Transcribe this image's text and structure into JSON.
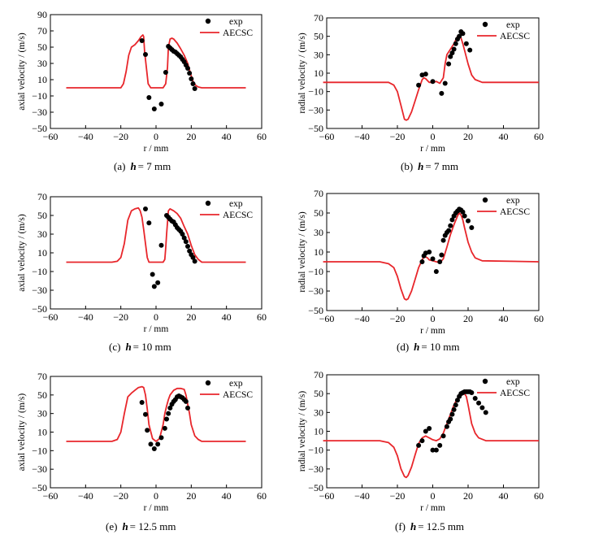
{
  "chart_data": [
    {
      "type": "line",
      "caption": {
        "letter": "(a)",
        "var": "h",
        "value": "= 7 mm"
      },
      "xlabel": "r / mm",
      "ylabel": "axial velocity / (m/s)",
      "xlim": [
        -60,
        60
      ],
      "ylim": [
        -50,
        90
      ],
      "xticks": [
        -60,
        -40,
        -20,
        0,
        20,
        40,
        60
      ],
      "yticks": [
        -50,
        -30,
        -10,
        10,
        30,
        50,
        70,
        90
      ],
      "legend": [
        "exp",
        "AECSC"
      ],
      "legend_position": "top-right",
      "series": [
        {
          "name": "AECSC",
          "kind": "line",
          "color": "#e8262b",
          "x": [
            -51,
            -20,
            -18.5,
            -17,
            -15.5,
            -14,
            -12,
            -10,
            -8.5,
            -7.5,
            -7,
            -6.5,
            -5.5,
            -4.5,
            -3,
            4,
            5.5,
            6.5,
            7,
            8,
            9,
            10,
            12,
            14,
            16,
            18,
            19.5,
            21,
            22.5,
            24,
            26,
            51
          ],
          "y": [
            0,
            0,
            5,
            20,
            40,
            50,
            53,
            58,
            63,
            65,
            63,
            45,
            25,
            5,
            0,
            0,
            5,
            25,
            50,
            60,
            61,
            60,
            55,
            48,
            40,
            30,
            18,
            8,
            3,
            1,
            0,
            0
          ]
        },
        {
          "name": "exp",
          "kind": "scatter",
          "color": "#000000",
          "x": [
            -8,
            -6,
            -4,
            -1,
            3,
            5.5,
            7,
            8,
            9,
            10,
            11,
            12,
            13,
            14,
            15,
            16,
            17,
            18,
            19,
            20,
            21,
            22
          ],
          "y": [
            58,
            41,
            -12,
            -26,
            -20,
            19,
            51,
            49,
            47,
            45,
            44,
            42,
            40,
            38,
            35,
            32,
            28,
            24,
            18,
            11,
            5,
            -1
          ]
        }
      ]
    },
    {
      "type": "line",
      "caption": {
        "letter": "(b)",
        "var": "h",
        "value": "= 7 mm"
      },
      "xlabel": "r / mm",
      "ylabel": "radial velocity / (m/s)",
      "xlim": [
        -60,
        60
      ],
      "ylim": [
        -50,
        70
      ],
      "xticks": [
        -60,
        -40,
        -20,
        0,
        20,
        40,
        60
      ],
      "yticks": [
        -50,
        -30,
        -10,
        10,
        30,
        50,
        70
      ],
      "legend": [
        "exp",
        "AECSC"
      ],
      "legend_position": "top-right",
      "series": [
        {
          "name": "AECSC",
          "kind": "line",
          "color": "#e8262b",
          "x": [
            -62,
            -25,
            -22,
            -20,
            -18,
            -16,
            -15,
            -14,
            -12,
            -10,
            -8,
            -6,
            -5,
            -4,
            -3,
            -2,
            0,
            2,
            4,
            6,
            7,
            8,
            10,
            12,
            13,
            14,
            15,
            16,
            17,
            18,
            20,
            22,
            24,
            28,
            60
          ],
          "y": [
            0,
            0,
            -3,
            -10,
            -25,
            -40,
            -41,
            -40,
            -32,
            -20,
            -8,
            3,
            5,
            4,
            2,
            0,
            0,
            1,
            -1,
            5,
            20,
            30,
            36,
            42,
            46,
            50,
            51,
            48,
            42,
            35,
            20,
            8,
            3,
            0,
            0
          ]
        },
        {
          "name": "exp",
          "kind": "scatter",
          "color": "#000000",
          "x": [
            -8,
            -6,
            -4,
            0,
            5,
            7,
            9,
            10,
            11,
            12,
            13,
            14,
            15,
            16,
            17,
            19,
            21
          ],
          "y": [
            -3,
            8,
            9,
            1,
            -12,
            -1,
            20,
            28,
            32,
            36,
            42,
            47,
            50,
            55,
            53,
            42,
            35
          ]
        }
      ]
    },
    {
      "type": "line",
      "caption": {
        "letter": "(c)",
        "var": "h",
        "value": "= 10 mm"
      },
      "xlabel": "r / mm",
      "ylabel": "axial velocity / (m/s)",
      "xlim": [
        -60,
        60
      ],
      "ylim": [
        -50,
        70
      ],
      "xticks": [
        -60,
        -40,
        -20,
        0,
        20,
        40,
        60
      ],
      "yticks": [
        -50,
        -30,
        -10,
        10,
        30,
        50,
        70
      ],
      "legend": [
        "exp",
        "AECSC"
      ],
      "legend_position": "top-right",
      "series": [
        {
          "name": "AECSC",
          "kind": "line",
          "color": "#e8262b",
          "x": [
            -51,
            -25,
            -22,
            -20,
            -18,
            -16,
            -14,
            -12,
            -10,
            -9,
            -8,
            -7,
            -6,
            -5,
            -4,
            4,
            5,
            5.5,
            6,
            7,
            8,
            10,
            12,
            14,
            16,
            18,
            20,
            22,
            24,
            26,
            51
          ],
          "y": [
            0,
            0,
            1,
            5,
            20,
            45,
            55,
            57,
            58,
            55,
            48,
            35,
            20,
            5,
            0,
            0,
            3,
            15,
            30,
            55,
            57,
            55,
            52,
            47,
            38,
            30,
            18,
            8,
            3,
            0,
            0
          ]
        },
        {
          "name": "exp",
          "kind": "scatter",
          "color": "#000000",
          "x": [
            -6,
            -4,
            -2,
            -1,
            1,
            3,
            6,
            7,
            8,
            9,
            10,
            11,
            12,
            13,
            14,
            15,
            16,
            17,
            18,
            19,
            20,
            21,
            22
          ],
          "y": [
            57,
            42,
            -13,
            -26,
            -22,
            18,
            50,
            48,
            46,
            44,
            43,
            40,
            37,
            35,
            33,
            30,
            26,
            22,
            17,
            12,
            8,
            5,
            1
          ]
        }
      ]
    },
    {
      "type": "line",
      "caption": {
        "letter": "(d)",
        "var": "h",
        "value": "= 10 mm"
      },
      "xlabel": "r / mm",
      "ylabel": "radial velocity / (m/s)",
      "xlim": [
        -60,
        60
      ],
      "ylim": [
        -50,
        70
      ],
      "xticks": [
        -60,
        -40,
        -20,
        0,
        20,
        40,
        60
      ],
      "yticks": [
        -50,
        -30,
        -10,
        10,
        30,
        50,
        70
      ],
      "legend": [
        "exp",
        "AECSC"
      ],
      "legend_position": "top-right",
      "series": [
        {
          "name": "AECSC",
          "kind": "line",
          "color": "#e8262b",
          "x": [
            -62,
            -30,
            -25,
            -22,
            -20,
            -18,
            -16,
            -15,
            -14,
            -12,
            -10,
            -8,
            -6,
            -5,
            -4,
            -3,
            -2,
            0,
            2,
            4,
            6,
            8,
            10,
            12,
            14,
            15,
            16,
            17,
            18,
            20,
            22,
            24,
            28,
            60
          ],
          "y": [
            0,
            0,
            -2,
            -6,
            -15,
            -28,
            -38,
            -39,
            -38,
            -30,
            -18,
            -6,
            2,
            5,
            5,
            4,
            2,
            1,
            0,
            -1,
            3,
            15,
            28,
            38,
            47,
            50,
            48,
            43,
            35,
            20,
            10,
            4,
            1,
            0
          ]
        },
        {
          "name": "exp",
          "kind": "scatter",
          "color": "#000000",
          "x": [
            -6,
            -5,
            -4,
            -2,
            0,
            2,
            4,
            5,
            6,
            7,
            8,
            9,
            10,
            11,
            12,
            13,
            14,
            15,
            16,
            17,
            18,
            20,
            22
          ],
          "y": [
            0,
            6,
            9,
            10,
            3,
            -10,
            0,
            7,
            22,
            27,
            30,
            32,
            37,
            43,
            47,
            50,
            52,
            54,
            53,
            51,
            47,
            42,
            35
          ]
        }
      ]
    },
    {
      "type": "line",
      "caption": {
        "letter": "(e)",
        "var": "h",
        "value": "= 12.5 mm"
      },
      "xlabel": "r / mm",
      "ylabel": "axial velocity / (m/s)",
      "xlim": [
        -60,
        60
      ],
      "ylim": [
        -50,
        70
      ],
      "xticks": [
        -60,
        -40,
        -20,
        0,
        20,
        40,
        60
      ],
      "yticks": [
        -50,
        -30,
        -10,
        10,
        30,
        50,
        70
      ],
      "legend": [
        "exp",
        "AECSC"
      ],
      "legend_position": "top-right",
      "series": [
        {
          "name": "AECSC",
          "kind": "line",
          "color": "#e8262b",
          "x": [
            -51,
            -25,
            -22,
            -20,
            -18,
            -16,
            -14,
            -12,
            -10,
            -8,
            -7,
            -6,
            -5,
            -4,
            -2,
            0,
            2,
            4,
            5,
            6,
            7,
            8,
            10,
            12,
            14,
            16,
            17,
            18,
            19,
            20,
            22,
            24,
            26,
            51
          ],
          "y": [
            0,
            0,
            2,
            10,
            30,
            48,
            52,
            55,
            58,
            59,
            58,
            50,
            35,
            18,
            3,
            0,
            3,
            18,
            30,
            38,
            45,
            50,
            55,
            57,
            57,
            56,
            50,
            40,
            30,
            18,
            6,
            2,
            0,
            0
          ]
        },
        {
          "name": "exp",
          "kind": "scatter",
          "color": "#000000",
          "x": [
            -8,
            -6,
            -5,
            -3,
            -1,
            1,
            3,
            5,
            6,
            7,
            8,
            9,
            10,
            11,
            12,
            13,
            14,
            15,
            16,
            17,
            18
          ],
          "y": [
            42,
            29,
            12,
            -3,
            -8,
            -3,
            4,
            14,
            24,
            30,
            36,
            40,
            43,
            45,
            48,
            49,
            48,
            47,
            45,
            43,
            36
          ]
        }
      ]
    },
    {
      "type": "line",
      "caption": {
        "letter": "(f)",
        "var": "h",
        "value": "= 12.5 mm"
      },
      "xlabel": "r / mm",
      "ylabel": "radial velocity / (m/s)",
      "xlim": [
        -60,
        60
      ],
      "ylim": [
        -50,
        70
      ],
      "xticks": [
        -60,
        -40,
        -20,
        0,
        20,
        40,
        60
      ],
      "yticks": [
        -50,
        -30,
        -10,
        10,
        30,
        50,
        70
      ],
      "legend": [
        "exp",
        "AECSC"
      ],
      "legend_position": "top-right",
      "series": [
        {
          "name": "AECSC",
          "kind": "line",
          "color": "#e8262b",
          "x": [
            -62,
            -30,
            -25,
            -22,
            -20,
            -18,
            -16,
            -15,
            -14,
            -12,
            -10,
            -8,
            -6,
            -4,
            -3,
            -2,
            0,
            2,
            4,
            6,
            8,
            10,
            12,
            14,
            16,
            18,
            19,
            20,
            22,
            24,
            26,
            30,
            60
          ],
          "y": [
            0,
            0,
            -2,
            -7,
            -16,
            -30,
            -38,
            -39,
            -37,
            -28,
            -15,
            -3,
            3,
            5,
            4,
            3,
            1,
            0,
            2,
            8,
            18,
            28,
            38,
            45,
            48,
            50,
            47,
            38,
            18,
            8,
            3,
            0,
            0
          ]
        },
        {
          "name": "exp",
          "kind": "scatter",
          "color": "#000000",
          "x": [
            -8,
            -6,
            -4,
            -2,
            0,
            2,
            4,
            6,
            8,
            9,
            10,
            11,
            12,
            13,
            14,
            15,
            16,
            17,
            18,
            19,
            20,
            21,
            22,
            24,
            26,
            28,
            30
          ],
          "y": [
            -5,
            0,
            10,
            13,
            -10,
            -10,
            -5,
            5,
            15,
            20,
            23,
            28,
            33,
            38,
            43,
            47,
            50,
            51,
            52,
            52,
            52,
            52,
            51,
            45,
            40,
            35,
            30
          ]
        }
      ]
    }
  ]
}
